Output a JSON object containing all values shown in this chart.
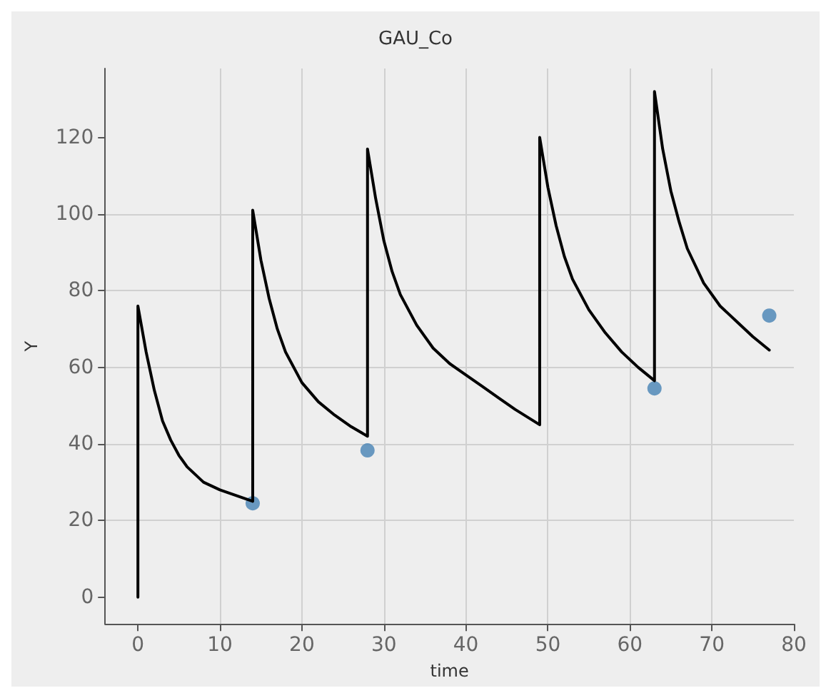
{
  "chart_data": {
    "type": "line",
    "title": "GAU_Co",
    "xlabel": "time",
    "ylabel": "Y",
    "xlim": [
      -4,
      80
    ],
    "xticks": [
      0,
      10,
      20,
      30,
      40,
      50,
      60,
      70,
      80
    ],
    "ylim": [
      -7,
      138
    ],
    "yticks": [
      0,
      20,
      40,
      60,
      80,
      100,
      120
    ],
    "grid": true,
    "series": [
      {
        "color": "#000000",
        "marker": "none",
        "line_style": "solid",
        "x": [
          0,
          0,
          1,
          2,
          3,
          4,
          5,
          6,
          8,
          10,
          12,
          14,
          14,
          15,
          16,
          17,
          18,
          20,
          22,
          24,
          26,
          28,
          28,
          29,
          30,
          31,
          32,
          34,
          36,
          38,
          40,
          42,
          44,
          46,
          49,
          49,
          50,
          51,
          52,
          53,
          55,
          57,
          59,
          61,
          63,
          63,
          64,
          65,
          66,
          67,
          69,
          71,
          73,
          75,
          77
        ],
        "values": [
          0,
          76,
          64,
          54,
          46,
          41,
          37,
          34,
          30,
          28,
          26.5,
          25,
          101,
          88,
          78,
          70,
          64,
          56,
          51,
          47.5,
          44.5,
          42,
          117,
          104,
          93,
          85,
          79,
          71,
          65,
          61,
          58,
          55,
          52,
          49,
          45,
          120,
          107,
          97,
          89,
          83,
          75,
          69,
          64,
          60,
          56.5,
          132,
          117,
          106,
          98,
          91,
          82,
          76,
          72,
          68,
          64.5
        ]
      },
      {
        "type": "scatter",
        "color": "#4682b4",
        "marker": "circle",
        "x": [
          14,
          28,
          63,
          77
        ],
        "values": [
          24.5,
          38.3,
          54.5,
          73.5
        ]
      }
    ]
  }
}
